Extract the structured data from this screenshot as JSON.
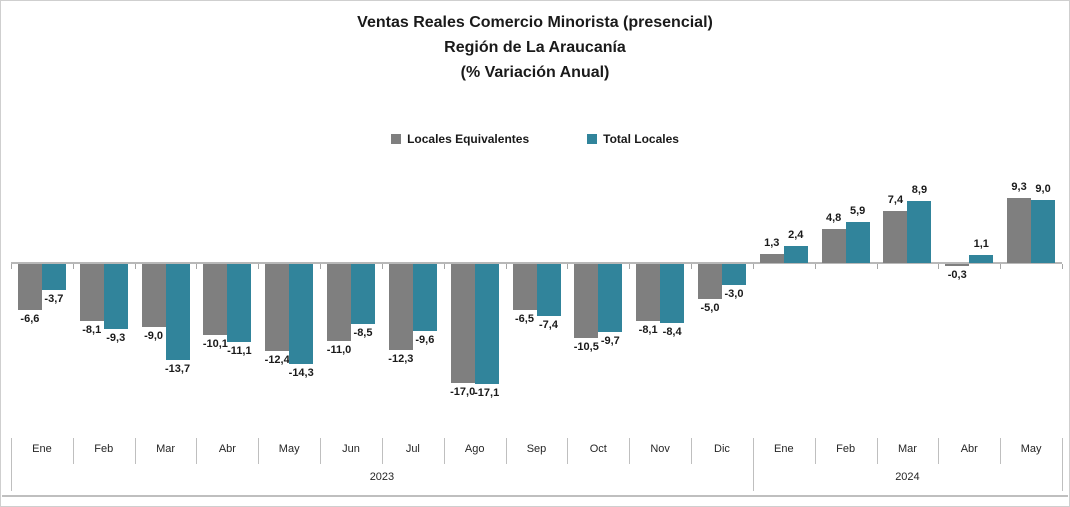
{
  "header": {
    "title_lines": [
      "Ventas Reales Comercio Minorista (presencial)",
      "Región de La Araucanía",
      "(% Variación Anual)"
    ]
  },
  "chart_data": {
    "type": "bar",
    "title": "Ventas Reales Comercio Minorista (presencial) Región de La Araucanía (% Variación Anual)",
    "xlabel": "",
    "ylabel": "% Variación Anual",
    "ylim": [
      -19,
      12
    ],
    "gridlines": false,
    "legend_position": "top-center",
    "decimal_separator": ",",
    "categories": [
      "Ene",
      "Feb",
      "Mar",
      "Abr",
      "May",
      "Jun",
      "Jul",
      "Ago",
      "Sep",
      "Oct",
      "Nov",
      "Dic",
      "Ene",
      "Feb",
      "Mar",
      "Abr",
      "May"
    ],
    "year_groups": [
      {
        "label": "2023",
        "span": 12
      },
      {
        "label": "2024",
        "span": 5
      }
    ],
    "series": [
      {
        "name": "Locales Equivalentes",
        "color": "#7F7F7F",
        "values": [
          -6.6,
          -8.1,
          -9.0,
          -10.1,
          -12.4,
          -11.0,
          -12.3,
          -17.0,
          -6.5,
          -10.5,
          -8.1,
          -5.0,
          1.3,
          4.8,
          7.4,
          -0.3,
          9.3
        ],
        "value_labels": [
          "-6,6",
          "-8,1",
          "-9,0",
          "-10,1",
          "-12,4",
          "-11,0",
          "-12,3",
          "-17,0",
          "-6,5",
          "-10,5",
          "-8,1",
          "-5,0",
          "1,3",
          "4,8",
          "7,4",
          "-0,3",
          "9,3"
        ]
      },
      {
        "name": "Total Locales",
        "color": "#31849B",
        "values": [
          -3.7,
          -9.3,
          -13.7,
          -11.1,
          -14.3,
          -8.5,
          -9.6,
          -17.1,
          -7.4,
          -9.7,
          -8.4,
          -3.0,
          2.4,
          5.9,
          8.9,
          1.1,
          9.0
        ],
        "value_labels": [
          "-3,7",
          "-9,3",
          "-13,7",
          "-11,1",
          "-14,3",
          "-8,5",
          "-9,6",
          "-17,1",
          "-7,4",
          "-9,7",
          "-8,4",
          "-3,0",
          "2,4",
          "5,9",
          "8,9",
          "1,1",
          "9,0"
        ]
      }
    ]
  },
  "colors": {
    "bar_gray": "#7F7F7F",
    "bar_teal": "#31849B",
    "axis": "#b8b8b8",
    "text": "#1a1a1a"
  }
}
